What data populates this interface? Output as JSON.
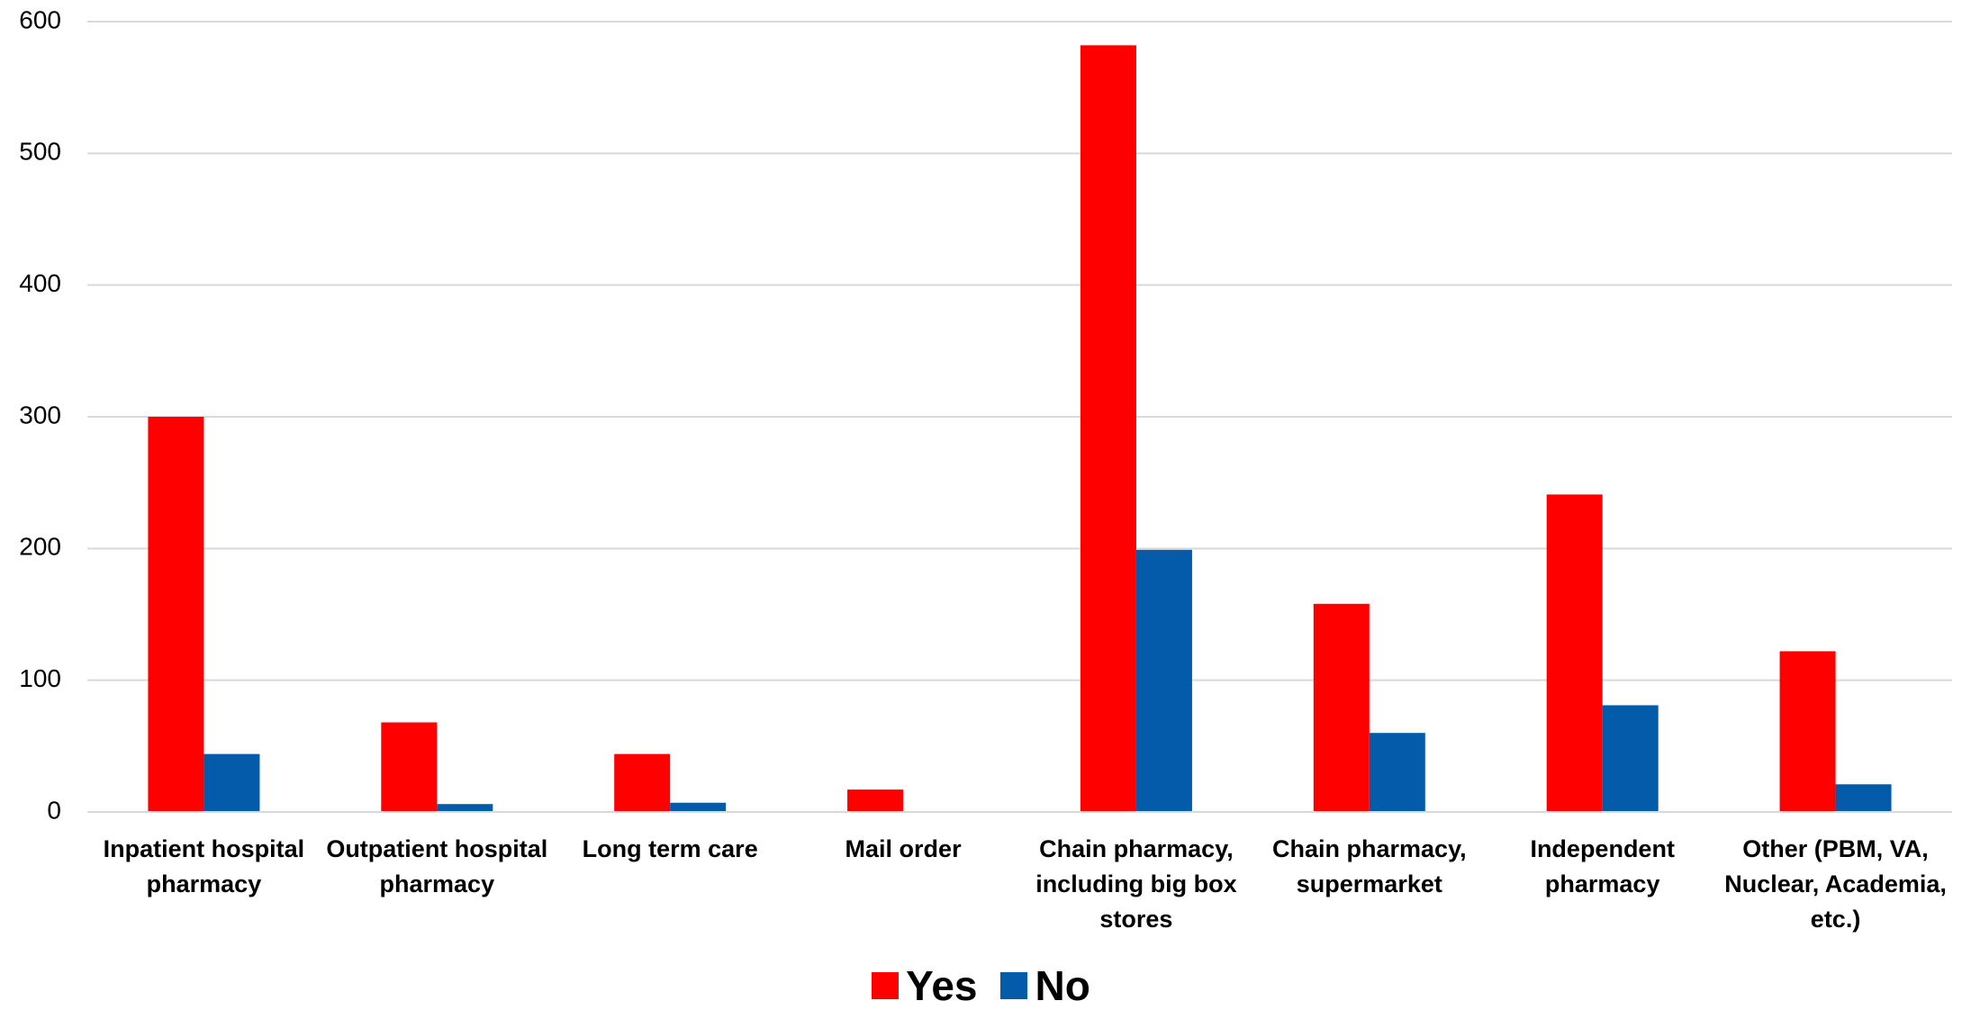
{
  "chart_data": {
    "type": "bar",
    "categories": [
      "Inpatient hospital pharmacy",
      "Outpatient hospital pharmacy",
      "Long term care",
      "Mail order",
      "Chain pharmacy, including big box stores",
      "Chain pharmacy, supermarket",
      "Independent pharmacy",
      "Other (PBM, VA, Nuclear, Academia, etc.)"
    ],
    "series": [
      {
        "name": "Yes",
        "color": "#ff0000",
        "values": [
          300,
          68,
          44,
          17,
          582,
          158,
          241,
          122
        ]
      },
      {
        "name": "No",
        "color": "#045ba9",
        "values": [
          44,
          6,
          7,
          0,
          199,
          60,
          81,
          21
        ]
      }
    ],
    "ylim": [
      0,
      600
    ],
    "yticks": [
      0,
      100,
      200,
      300,
      400,
      500,
      600
    ],
    "grid": true,
    "legend": "bottom"
  }
}
